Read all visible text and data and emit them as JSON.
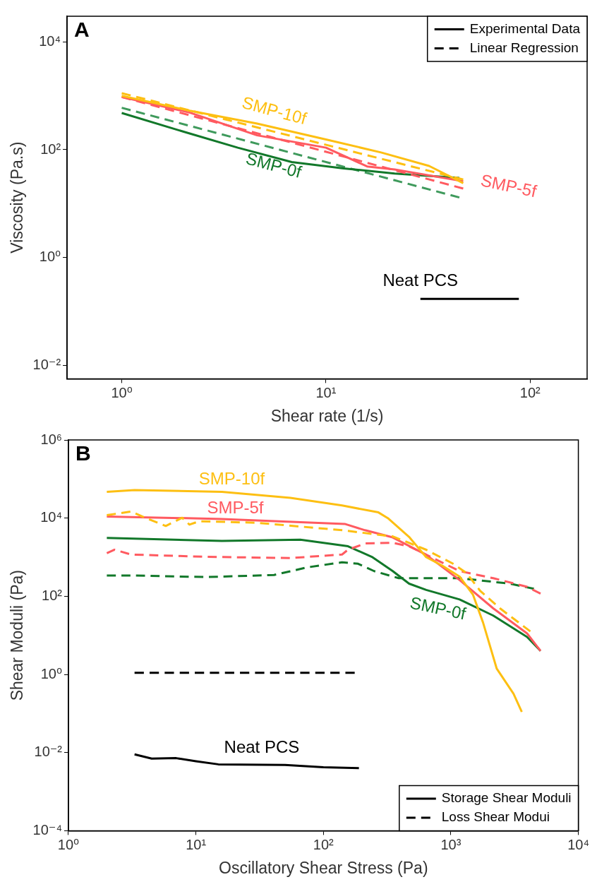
{
  "chart_data": [
    {
      "type": "line",
      "xlabel": "Shear rate (1/s)",
      "ylabel": "Viscosity (Pa.s)",
      "log": "xy",
      "grid": false,
      "legend": "top right",
      "annotations": [
        "A"
      ],
      "xlim": [
        0.54,
        190
      ],
      "ylim": [
        0.0056,
        30000
      ],
      "xticks": [
        {
          "value": 1,
          "label": "10⁰"
        },
        {
          "value": 10,
          "label": "10¹"
        },
        {
          "value": 100,
          "label": "10²"
        }
      ],
      "yticks": [
        {
          "value": 0.01,
          "label": "10⁻²"
        },
        {
          "value": 1,
          "label": "10⁰"
        },
        {
          "value": 100,
          "label": "10²"
        },
        {
          "value": 10000,
          "label": "10⁴"
        }
      ],
      "series": [
        {
          "name": "SMP-10f",
          "color": "#fdbf12",
          "line_style": "solid",
          "x": [
            1,
            2.15,
            4.6,
            10,
            18.6,
            32,
            47
          ],
          "values": [
            1000,
            530,
            305,
            155,
            89,
            50,
            24
          ]
        },
        {
          "color": "#fdbf12",
          "line_style": "dashed",
          "x": [
            1,
            47
          ],
          "values": [
            1120,
            28
          ]
        },
        {
          "name": "SMP-5f",
          "color": "#ff5a60",
          "line_style": "solid",
          "x": [
            1,
            2.15,
            4.6,
            10,
            15.9,
            21.7,
            47
          ],
          "values": [
            950,
            490,
            185,
            109,
            49,
            43,
            26
          ]
        },
        {
          "color": "#ff5a60",
          "line_style": "dashed",
          "x": [
            1,
            47
          ],
          "values": [
            950,
            19
          ]
        },
        {
          "name": "SMP-0f",
          "color": "#12782a",
          "line_style": "solid",
          "x": [
            1,
            2.15,
            3.7,
            6.8,
            12.2,
            21.7,
            45
          ],
          "values": [
            480,
            200,
            109,
            59,
            45,
            36,
            30
          ]
        },
        {
          "color": "#3f9a5c",
          "line_style": "dashed",
          "x": [
            1,
            45
          ],
          "values": [
            600,
            13
          ]
        },
        {
          "name": "Neat PCS",
          "color": "#000000",
          "line_style": "solid",
          "x": [
            29,
            88
          ],
          "values": [
            0.17,
            0.17
          ]
        },
        {
          "name": "Experimental Data",
          "color": "#000000",
          "line_style": "solid"
        },
        {
          "name": "Linear Regression",
          "color": "#000000",
          "line_style": "dashed"
        }
      ]
    },
    {
      "type": "line",
      "xlabel": "Oscillatory Shear Stress (Pa)",
      "ylabel": "Shear Moduli (Pa)",
      "log": "xy",
      "grid": false,
      "legend": "bottom right",
      "annotations": [
        "B"
      ],
      "xlim": [
        1,
        10000
      ],
      "ylim": [
        0.0001,
        1000000
      ],
      "xticks": [
        {
          "value": 1,
          "label": "10⁰"
        },
        {
          "value": 10,
          "label": "10¹"
        },
        {
          "value": 100,
          "label": "10²"
        },
        {
          "value": 1000,
          "label": "10³"
        },
        {
          "value": 10000,
          "label": "10⁴"
        }
      ],
      "yticks": [
        {
          "value": 0.0001,
          "label": "10⁻⁴"
        },
        {
          "value": 0.01,
          "label": "10⁻²"
        },
        {
          "value": 1,
          "label": "10⁰"
        },
        {
          "value": 100,
          "label": "10²"
        },
        {
          "value": 10000,
          "label": "10⁴"
        },
        {
          "value": 1000000,
          "label": "10⁶"
        }
      ],
      "series": [
        {
          "name": "SMP-10f",
          "color": "#fdbf12",
          "line_style": "solid",
          "x": [
            2.0,
            3.3,
            16,
            55,
            140,
            270,
            320,
            470,
            640,
            860,
            1170,
            1490,
            1790,
            2290,
            3100,
            3600
          ],
          "values": [
            47000,
            52000,
            47000,
            33000,
            21000,
            14000,
            10000,
            3300,
            1000,
            600,
            320,
            110,
            21,
            1.4,
            0.32,
            0.11
          ]
        },
        {
          "color": "#fdbf12",
          "line_style": "dashed",
          "x": [
            2.0,
            3.1,
            4.0,
            5.8,
            7.8,
            8.9,
            10.6,
            30,
            140,
            350,
            640,
            1040,
            1320,
            1690,
            2430,
            4200
          ],
          "values": [
            11900,
            14700,
            10200,
            6300,
            10200,
            6800,
            8300,
            7600,
            4900,
            3400,
            1550,
            680,
            400,
            140,
            49,
            12.6
          ]
        },
        {
          "name": "SMP-5f",
          "color": "#ff5a60",
          "line_style": "solid",
          "x": [
            2.0,
            16,
            147,
            212,
            350,
            640,
            1170,
            2150,
            3960,
            5050
          ],
          "values": [
            11000,
            9500,
            7100,
            4900,
            3200,
            1150,
            260,
            49,
            11.2,
            4.0
          ]
        },
        {
          "color": "#ff5a60",
          "line_style": "dashed",
          "x": [
            2.0,
            2.3,
            3.1,
            12,
            55,
            140,
            156,
            212,
            350,
            470,
            1170,
            2150,
            3960,
            5050
          ],
          "values": [
            1260,
            1550,
            1170,
            1020,
            950,
            1170,
            1550,
            2240,
            2340,
            1900,
            440,
            290,
            174,
            117
          ]
        },
        {
          "name": "SMP-0f",
          "color": "#12782a",
          "line_style": "solid",
          "x": [
            2.0,
            16,
            66,
            156,
            240,
            350,
            470,
            640,
            1170,
            2150,
            3960,
            5050
          ],
          "values": [
            3100,
            2600,
            2800,
            1900,
            1020,
            440,
            210,
            145,
            83,
            32,
            9.1,
            4.0
          ]
        },
        {
          "color": "#12782a",
          "line_style": "dashed",
          "x": [
            2.0,
            3.1,
            12,
            41,
            75,
            140,
            187,
            250,
            390,
            1170,
            2920,
            4480
          ],
          "values": [
            340,
            340,
            310,
            350,
            550,
            740,
            680,
            440,
            290,
            290,
            210,
            155
          ]
        },
        {
          "color": "#000000",
          "line_style": "dashed",
          "x": [
            3.3,
            176
          ],
          "values": [
            1.1,
            1.1
          ]
        },
        {
          "name": "Neat PCS",
          "color": "#000000",
          "line_style": "solid",
          "x": [
            3.3,
            4.5,
            7,
            10,
            15,
            50,
            100,
            190
          ],
          "values": [
            0.009,
            0.007,
            0.0072,
            0.006,
            0.005,
            0.0048,
            0.0042,
            0.004
          ]
        },
        {
          "name": "Storage Shear Moduli",
          "color": "#000000",
          "line_style": "solid"
        },
        {
          "name": "Loss Shear Modui",
          "color": "#000000",
          "line_style": "dashed"
        }
      ]
    }
  ]
}
